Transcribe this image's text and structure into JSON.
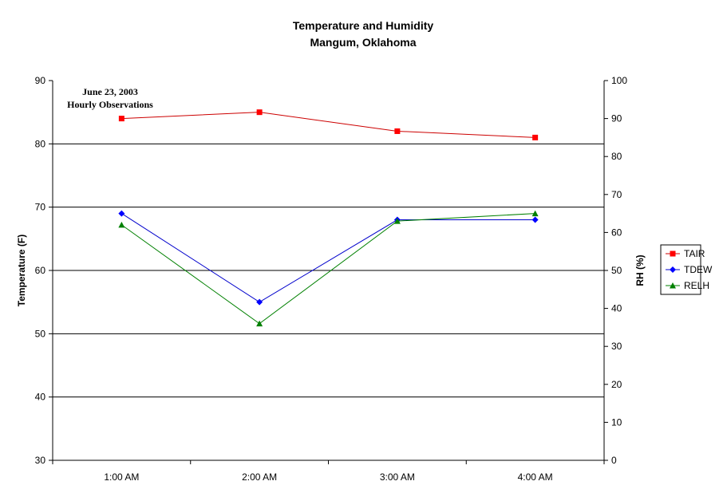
{
  "chart_data": {
    "type": "line",
    "title": "Temperature and Humidity",
    "subtitle": "Mangum, Oklahoma",
    "annotation": [
      "June 23, 2003",
      "Hourly Observations"
    ],
    "categories": [
      "1:00 AM",
      "2:00 AM",
      "3:00 AM",
      "4:00 AM"
    ],
    "ylabel": "Temperature (F)",
    "y2label": "RH (%)",
    "ylim": [
      30,
      90
    ],
    "yticks": [
      30,
      40,
      50,
      60,
      70,
      80,
      90
    ],
    "y2lim": [
      0,
      100
    ],
    "y2ticks": [
      0,
      10,
      20,
      30,
      40,
      50,
      60,
      70,
      80,
      90,
      100
    ],
    "grid": "horizontal",
    "legend_position": "right",
    "series": [
      {
        "name": "TAIR",
        "axis": "left",
        "color": "#ff0000",
        "line_color": "#cc0000",
        "marker": "square",
        "values": [
          84,
          85,
          82,
          81
        ]
      },
      {
        "name": "TDEW",
        "axis": "left",
        "color": "#0000ff",
        "line_color": "#0000cc",
        "marker": "diamond",
        "values": [
          69,
          55,
          68,
          68
        ]
      },
      {
        "name": "RELH",
        "axis": "right",
        "color": "#008000",
        "line_color": "#008000",
        "marker": "triangle",
        "values": [
          62,
          36,
          63,
          65
        ]
      }
    ]
  }
}
